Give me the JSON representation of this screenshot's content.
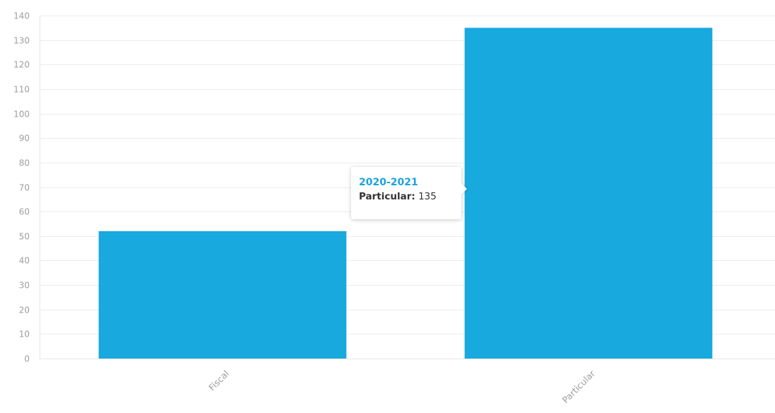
{
  "chart_data": {
    "type": "bar",
    "categories": [
      "Fiscal",
      "Particular"
    ],
    "series": [
      {
        "values": [
          52,
          135
        ]
      }
    ],
    "ylim": [
      0,
      140
    ],
    "yticks": [
      0,
      10,
      20,
      30,
      40,
      50,
      60,
      70,
      80,
      90,
      100,
      110,
      120,
      130,
      140
    ],
    "grid": true,
    "colors": {
      "bar": "#18a9df",
      "tooltip_title": "#1aa3d9"
    }
  },
  "tooltip": {
    "title": "2020-2021",
    "series_label": "Particular:",
    "value": "135"
  }
}
